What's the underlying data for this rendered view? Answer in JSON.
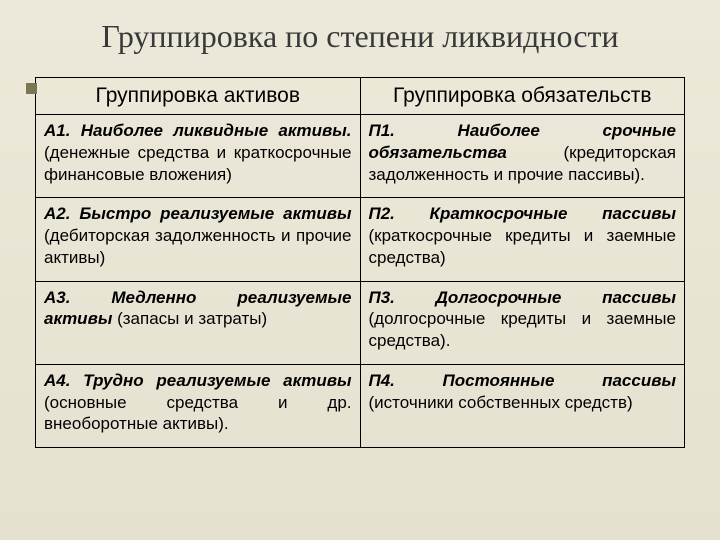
{
  "title": "Группировка по степени ликвидности",
  "headers": {
    "left": "Группировка активов",
    "right": "Группировка обязательств"
  },
  "rows": [
    {
      "left_bold": "А1. Наиболее ликвидные активы.",
      "left_rest": " (денежные средства и краткосрочные финансовые вложения)",
      "right_bold": "П1. Наиболее срочные обязательства",
      "right_rest": " (кредиторская задолженность и прочие пассивы)."
    },
    {
      "left_bold": "А2. Быстро реализуемые активы",
      "left_rest": " (дебиторская задолженность и прочие активы)",
      "right_bold": "П2. Краткосрочные пассивы",
      "right_rest": " (краткосрочные кредиты и заемные средства)"
    },
    {
      "left_bold": "А3. Медленно реализуемые активы",
      "left_rest": " (запасы и затраты)",
      "right_bold": "П3. Долгосрочные пассивы",
      "right_rest": " (долгосрочные кредиты и заемные средства)."
    },
    {
      "left_bold": "А4. Трудно реализуемые активы",
      "left_rest": " (основные средства и др. внеоборотные активы).",
      "right_bold": "П4. Постоянные пассивы",
      "right_rest": " (источники собственных средств)"
    }
  ]
}
